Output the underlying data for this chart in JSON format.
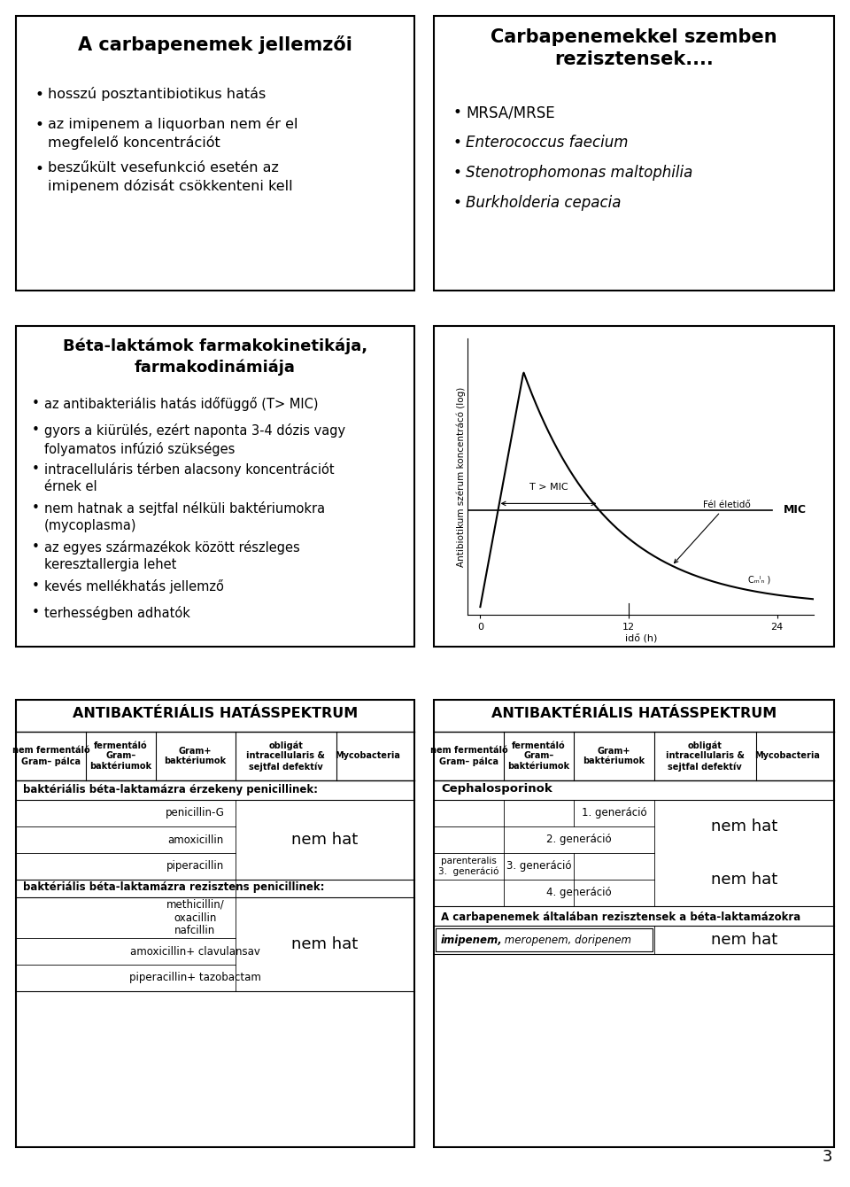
{
  "bg_color": "#ffffff",
  "page_num": "3",
  "box1_title": "A carbapenemek jellemzői",
  "box1_bullets": [
    "hosszú posztantibiotikus hatás",
    "az imipenem a liquorban nem ér el\nmegfelelő koncentrációt",
    "beszűkült vesefunkció esetén az\nimipenem dózisát csökkenteni kell"
  ],
  "box2_title": "Carbapenemekkel szemben\nrezisztensek....",
  "box2_bullets_normal": [
    "MRSA/MRSE"
  ],
  "box2_bullets_italic": [
    "Enterococcus faecium",
    "Stenotrophomonas maltophilia",
    "Burkholderia cepacia"
  ],
  "box3_title": "Béta-laktámok farmakokinetikája,\nfarmakodinámiája",
  "box3_bullets": [
    "az antibakteriális hatás időfüggő (T> MIC)",
    "gyors a kiürülés, ezért naponta 3-4 dózis vagy\nfolyamatos infúzió szükséges",
    "intracelluláris térben alacsony koncentrációt\nérnek el",
    "nem hatnak a sejtfal nélküli baktériumokra\n(mycoplasma)",
    "az egyes származékok között részleges\nkeresztallergia lehet",
    "kevés mellékhatás jellemző",
    "terhességben adhatók"
  ],
  "table1_title": "ANTIBAKTÉRIÁLIS HATÁSSPEKTRUM",
  "table1_headers": [
    "nem fermentáló\nGram– pálca",
    "fermentáló\nGram–\nbaktériumok",
    "Gram+\nbaktériumok",
    "obligát\nintracellularis &\nsejtfal defektív",
    "Mycobacteria"
  ],
  "table1_section1": "baktériális béta-laktamázra érzekeny penicillinek:",
  "table1_drugs1": [
    "penicillin-G",
    "amoxicillin",
    "piperacillin"
  ],
  "table1_section2": "baktériális béta-laktamázra rezisztens penicillinek:",
  "table1_drugs2": [
    "methicillin/\noxacillin\nnafcillin",
    "amoxicillin+ clavulansav",
    "piperacillin+ tazobactam"
  ],
  "nem_hat": "nem hat",
  "table2_title": "ANTIBAKTÉRIÁLIS HATÁSSPEKTRUM",
  "table2_headers": [
    "nem fermentáló\nGram– pálca",
    "fermentáló\nGram–\nbaktériumok",
    "Gram+\nbaktériumok",
    "obligát\nintracellularis &\nsejtfal defektív",
    "Mycobacteria"
  ],
  "table2_section": "Cephalosporinok",
  "table2_gen1": "1. generáció",
  "table2_gen2": "2. generáció",
  "table2_gen3_par": "parenteralis\n3.  generáció",
  "table2_gen3": "3. generáció",
  "table2_gen4": "4. generáció",
  "table2_carba": "A carbapenemek általában rezisztensek a béta-laktamázokra",
  "table2_carba_drugs": "imipenem, meropenem, doripenem",
  "table2_carba_drugs_bold": "imipenem",
  "graph_ylabel": "Antibiotikum szérum koncentrácó (log)",
  "graph_xlabel": "idő (h)",
  "graph_mic_label": "MIC",
  "graph_tmic_label": "T > MIC",
  "graph_halflife_label": "Fél életidő",
  "graph_cmin_label": "Cₘᴵₙ )"
}
